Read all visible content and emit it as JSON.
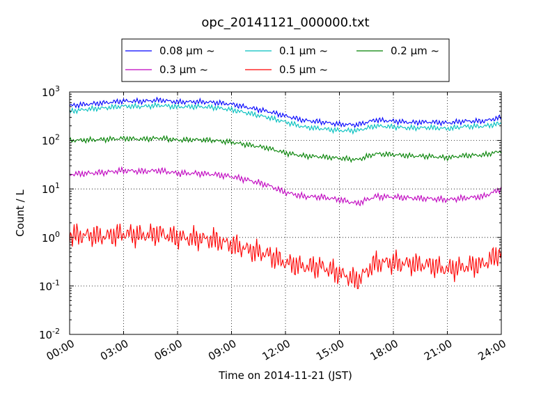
{
  "chart_data": {
    "type": "line",
    "title": "opc_20141121_000000.txt",
    "xlabel": "Time on 2014-11-21 (JST)",
    "ylabel": "Count / L",
    "y_scale": "log",
    "ylim": [
      0.01,
      1000
    ],
    "xlim": [
      "00:00",
      "24:00"
    ],
    "x_ticks": [
      "00:00",
      "03:00",
      "06:00",
      "09:00",
      "12:00",
      "15:00",
      "18:00",
      "21:00",
      "24:00"
    ],
    "y_ticks": [
      {
        "base": "10",
        "exp": "-2"
      },
      {
        "base": "10",
        "exp": "-1"
      },
      {
        "base": "10",
        "exp": "0"
      },
      {
        "base": "10",
        "exp": "1"
      },
      {
        "base": "10",
        "exp": "2"
      },
      {
        "base": "10",
        "exp": "3"
      }
    ],
    "grid": true,
    "legend_position": "top-center",
    "x": [
      "00:00",
      "01:00",
      "02:00",
      "03:00",
      "04:00",
      "05:00",
      "06:00",
      "07:00",
      "08:00",
      "09:00",
      "10:00",
      "11:00",
      "12:00",
      "13:00",
      "14:00",
      "15:00",
      "16:00",
      "17:00",
      "18:00",
      "19:00",
      "20:00",
      "21:00",
      "22:00",
      "23:00",
      "24:00"
    ],
    "series": [
      {
        "name": "0.08 μm ~",
        "color": "#0000ff",
        "values": [
          520,
          560,
          600,
          650,
          640,
          680,
          620,
          630,
          610,
          560,
          470,
          400,
          320,
          260,
          240,
          215,
          210,
          265,
          250,
          235,
          240,
          230,
          250,
          250,
          300
        ]
      },
      {
        "name": "0.1 μm ~",
        "color": "#00bfbf",
        "values": [
          400,
          440,
          470,
          510,
          500,
          530,
          490,
          500,
          480,
          430,
          360,
          300,
          240,
          190,
          175,
          160,
          160,
          200,
          190,
          180,
          185,
          175,
          195,
          195,
          225
        ]
      },
      {
        "name": "0.2 μm ~",
        "color": "#008000",
        "values": [
          100,
          102,
          105,
          110,
          106,
          112,
          102,
          104,
          100,
          92,
          80,
          70,
          55,
          48,
          46,
          43,
          40,
          53,
          51,
          48,
          47,
          44,
          49,
          50,
          60
        ]
      },
      {
        "name": "0.3 μm ~",
        "color": "#bf00bf",
        "values": [
          20,
          21,
          22,
          24,
          23,
          24,
          21,
          21,
          20,
          18,
          15,
          12,
          8.5,
          7,
          6.8,
          6,
          5,
          7,
          6.8,
          6.5,
          6.3,
          6,
          6.5,
          7,
          10
        ]
      },
      {
        "name": "0.5 μm ~",
        "color": "#ff0000",
        "values": [
          1.1,
          1.1,
          1.05,
          1.2,
          1.1,
          1.2,
          1.0,
          0.95,
          0.9,
          0.7,
          0.55,
          0.45,
          0.3,
          0.25,
          0.25,
          0.18,
          0.13,
          0.3,
          0.3,
          0.28,
          0.27,
          0.22,
          0.25,
          0.28,
          0.5
        ]
      }
    ]
  }
}
